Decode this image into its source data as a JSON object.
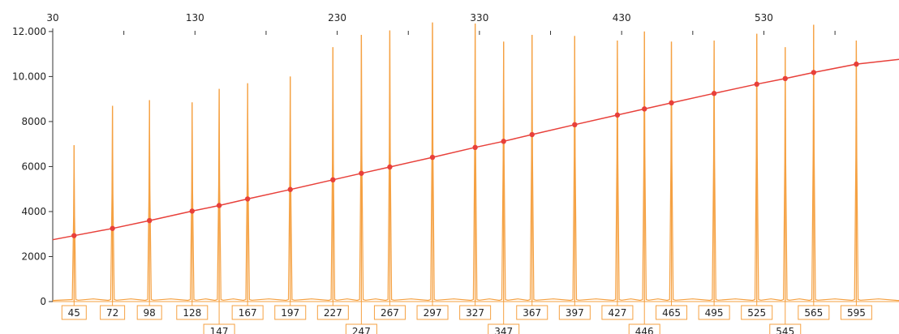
{
  "chart_data": {
    "type": "line",
    "title": "",
    "xlabel": "",
    "ylabel": "",
    "x_axis_top": {
      "min": 30,
      "max": 625,
      "tick_labels": [
        30,
        130,
        230,
        330,
        430,
        530
      ],
      "minor_ticks": [
        80,
        180,
        280,
        380,
        480,
        580
      ]
    },
    "y_axis": {
      "min": 0,
      "max": 12500,
      "tick_labels": [
        "0",
        "2000",
        "4000",
        "6000",
        "8000",
        "10.000",
        "12.000"
      ],
      "tick_values": [
        0,
        2000,
        4000,
        6000,
        8000,
        10000,
        12000
      ]
    },
    "series": [
      {
        "type": "line",
        "points": [
          {
            "x": 30,
            "y": 2750
          },
          {
            "x": 45,
            "y": 2930
          },
          {
            "x": 72,
            "y": 3250
          },
          {
            "x": 98,
            "y": 3600
          },
          {
            "x": 128,
            "y": 4020
          },
          {
            "x": 147,
            "y": 4270
          },
          {
            "x": 167,
            "y": 4560
          },
          {
            "x": 197,
            "y": 4980
          },
          {
            "x": 227,
            "y": 5410
          },
          {
            "x": 247,
            "y": 5700
          },
          {
            "x": 267,
            "y": 5980
          },
          {
            "x": 297,
            "y": 6410
          },
          {
            "x": 327,
            "y": 6850
          },
          {
            "x": 347,
            "y": 7120
          },
          {
            "x": 367,
            "y": 7420
          },
          {
            "x": 397,
            "y": 7860
          },
          {
            "x": 427,
            "y": 8290
          },
          {
            "x": 446,
            "y": 8560
          },
          {
            "x": 465,
            "y": 8830
          },
          {
            "x": 495,
            "y": 9250
          },
          {
            "x": 525,
            "y": 9660
          },
          {
            "x": 545,
            "y": 9910
          },
          {
            "x": 565,
            "y": 10180
          },
          {
            "x": 595,
            "y": 10550
          },
          {
            "x": 625,
            "y": 10760
          }
        ]
      },
      {
        "type": "peaks",
        "peaks": [
          {
            "x": 45,
            "height": 6950
          },
          {
            "x": 72,
            "height": 8700
          },
          {
            "x": 98,
            "height": 8950
          },
          {
            "x": 128,
            "height": 8850
          },
          {
            "x": 147,
            "height": 9450
          },
          {
            "x": 167,
            "height": 9700
          },
          {
            "x": 197,
            "height": 10000
          },
          {
            "x": 227,
            "height": 11300
          },
          {
            "x": 247,
            "height": 11850
          },
          {
            "x": 267,
            "height": 12050
          },
          {
            "x": 297,
            "height": 12400
          },
          {
            "x": 327,
            "height": 12350
          },
          {
            "x": 347,
            "height": 11550
          },
          {
            "x": 367,
            "height": 11850
          },
          {
            "x": 397,
            "height": 11800
          },
          {
            "x": 427,
            "height": 11600
          },
          {
            "x": 446,
            "height": 12000
          },
          {
            "x": 465,
            "height": 11550
          },
          {
            "x": 495,
            "height": 11600
          },
          {
            "x": 525,
            "height": 11900
          },
          {
            "x": 545,
            "height": 11300
          },
          {
            "x": 565,
            "height": 12300
          },
          {
            "x": 595,
            "height": 11600
          }
        ]
      }
    ],
    "size_labels": [
      {
        "text": "45",
        "row": 1
      },
      {
        "text": "72",
        "row": 1
      },
      {
        "text": "98",
        "row": 1
      },
      {
        "text": "128",
        "row": 1
      },
      {
        "text": "147",
        "row": 2
      },
      {
        "text": "167",
        "row": 1
      },
      {
        "text": "197",
        "row": 1
      },
      {
        "text": "227",
        "row": 1
      },
      {
        "text": "247",
        "row": 2
      },
      {
        "text": "267",
        "row": 1
      },
      {
        "text": "297",
        "row": 1
      },
      {
        "text": "327",
        "row": 1
      },
      {
        "text": "347",
        "row": 2
      },
      {
        "text": "367",
        "row": 1
      },
      {
        "text": "397",
        "row": 1
      },
      {
        "text": "427",
        "row": 1
      },
      {
        "text": "446",
        "row": 2
      },
      {
        "text": "465",
        "row": 1
      },
      {
        "text": "495",
        "row": 1
      },
      {
        "text": "525",
        "row": 1
      },
      {
        "text": "545",
        "row": 2
      },
      {
        "text": "565",
        "row": 1
      },
      {
        "text": "595",
        "row": 1
      }
    ],
    "colors": {
      "peaks": "#f5a142",
      "line": "#e8403a",
      "marker": "#e8403a",
      "label_border": "#f5a142",
      "axis": "#333333"
    },
    "grid": false,
    "legend": "none"
  }
}
